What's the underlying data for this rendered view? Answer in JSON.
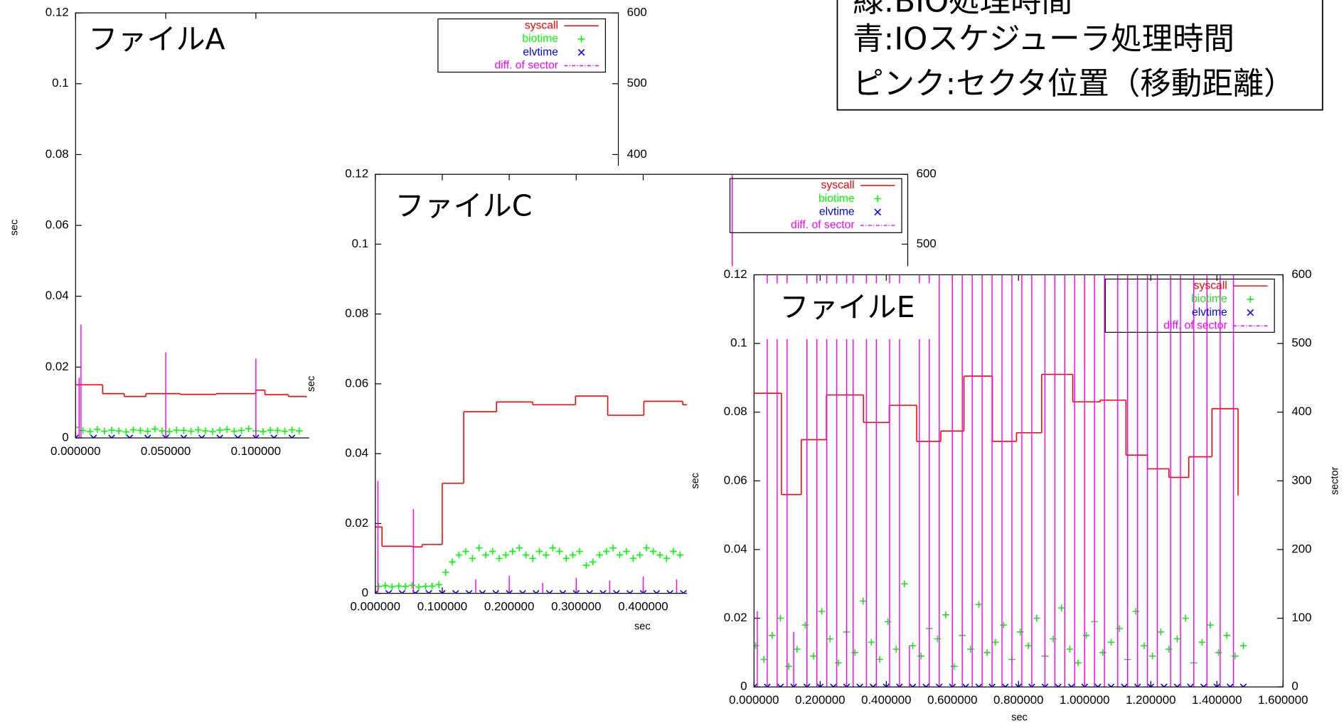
{
  "note": {
    "lines": [
      "緑:BIO処理時間",
      "青:IOスケジューラ処理時間",
      "ピンク:セクタ位置（移動距離）"
    ]
  },
  "chart_data": [
    {
      "type": "line",
      "label": "ファイルA",
      "ylabel": "sec",
      "xlim": [
        0,
        0.301
      ],
      "ylim": [
        0,
        0.12
      ],
      "y2lim": [
        0,
        600
      ],
      "xticks": [
        {
          "value": 0,
          "label": "0.000000"
        },
        {
          "value": 0.05,
          "label": "0.050000"
        },
        {
          "value": 0.1,
          "label": "0.100000"
        }
      ],
      "yticks": [
        0,
        0.02,
        0.04,
        0.06,
        0.08,
        0.1,
        0.12
      ],
      "y2ticks": [
        400,
        500,
        600
      ],
      "series": [
        {
          "name": "syscall",
          "color": "#ff0000",
          "style": "steps",
          "x": [
            0,
            0.015,
            0.027,
            0.039,
            0.058,
            0.078,
            0.1,
            0.105,
            0.118,
            0.128
          ],
          "values": [
            0.015,
            0.0125,
            0.0117,
            0.0125,
            0.0123,
            0.0125,
            0.0135,
            0.0122,
            0.0117,
            0.0117
          ]
        },
        {
          "name": "biotime",
          "color": "#00ff00",
          "style": "points",
          "marker": "+",
          "x": [
            0,
            0.004,
            0.008,
            0.012,
            0.016,
            0.02,
            0.024,
            0.028,
            0.032,
            0.036,
            0.04,
            0.044,
            0.048,
            0.052,
            0.056,
            0.06,
            0.064,
            0.068,
            0.072,
            0.076,
            0.08,
            0.084,
            0.088,
            0.092,
            0.096,
            0.1,
            0.104,
            0.108,
            0.112,
            0.116,
            0.12,
            0.124
          ],
          "values": [
            0.003,
            0.0021,
            0.0018,
            0.0024,
            0.0019,
            0.0022,
            0.002,
            0.0017,
            0.0023,
            0.0021,
            0.0019,
            0.0025,
            0.002,
            0.0018,
            0.0022,
            0.0021,
            0.0019,
            0.0023,
            0.002,
            0.0018,
            0.0022,
            0.0024,
            0.0019,
            0.0021,
            0.0026,
            0.002,
            0.0018,
            0.0022,
            0.0021,
            0.0019,
            0.0023,
            0.002
          ]
        },
        {
          "name": "elvtime",
          "color": "#0000ff",
          "style": "points",
          "marker": "x",
          "x": [
            0,
            0.01,
            0.02,
            0.03,
            0.04,
            0.05,
            0.06,
            0.07,
            0.08,
            0.09,
            0.1,
            0.11,
            0.12
          ],
          "values": [
            0,
            0,
            0,
            0,
            0,
            0,
            0,
            0,
            0,
            0,
            0,
            0,
            0
          ]
        },
        {
          "name": "diff. of sector",
          "color": "#ff00ff",
          "style": "impulses",
          "axis": "y2",
          "x": [
            0.002,
            0.003,
            0.05,
            0.1
          ],
          "values": [
            85,
            160,
            121,
            112
          ]
        }
      ]
    },
    {
      "type": "line",
      "label": "ファイルC",
      "ylabel": "sec",
      "xlabel": "sec",
      "xlim": [
        0,
        0.795
      ],
      "ylim": [
        0,
        0.12
      ],
      "y2lim": [
        0,
        600
      ],
      "xticks": [
        {
          "value": 0,
          "label": "0.000000"
        },
        {
          "value": 0.1,
          "label": "0.100000"
        },
        {
          "value": 0.2,
          "label": "0.200000"
        },
        {
          "value": 0.3,
          "label": "0.300000"
        },
        {
          "value": 0.4,
          "label": "0.400000"
        }
      ],
      "yticks": [
        0,
        0.02,
        0.04,
        0.06,
        0.08,
        0.1,
        0.12
      ],
      "y2ticks": [
        500,
        600
      ],
      "series": [
        {
          "name": "syscall",
          "color": "#ff0000",
          "style": "steps",
          "x": [
            0,
            0.01,
            0.055,
            0.07,
            0.1,
            0.132,
            0.181,
            0.235,
            0.299,
            0.347,
            0.401,
            0.459,
            0.47
          ],
          "values": [
            0.019,
            0.0135,
            0.0133,
            0.014,
            0.0315,
            0.052,
            0.0548,
            0.054,
            0.0565,
            0.051,
            0.055,
            0.054,
            0.054
          ]
        },
        {
          "name": "biotime",
          "color": "#00ff00",
          "style": "points",
          "marker": "+",
          "x": [
            0.005,
            0.015,
            0.025,
            0.035,
            0.045,
            0.055,
            0.065,
            0.075,
            0.085,
            0.095,
            0.105,
            0.115,
            0.125,
            0.135,
            0.145,
            0.155,
            0.165,
            0.175,
            0.185,
            0.195,
            0.205,
            0.215,
            0.225,
            0.235,
            0.245,
            0.255,
            0.265,
            0.275,
            0.285,
            0.295,
            0.305,
            0.315,
            0.325,
            0.335,
            0.345,
            0.355,
            0.365,
            0.375,
            0.385,
            0.395,
            0.405,
            0.415,
            0.425,
            0.435,
            0.445,
            0.455
          ],
          "values": [
            0.002,
            0.0022,
            0.0019,
            0.0021,
            0.002,
            0.0023,
            0.0018,
            0.002,
            0.0021,
            0.0025,
            0.006,
            0.009,
            0.011,
            0.012,
            0.01,
            0.013,
            0.011,
            0.012,
            0.01,
            0.011,
            0.012,
            0.013,
            0.011,
            0.01,
            0.012,
            0.011,
            0.013,
            0.012,
            0.01,
            0.011,
            0.012,
            0.008,
            0.009,
            0.011,
            0.012,
            0.013,
            0.011,
            0.012,
            0.01,
            0.011,
            0.013,
            0.012,
            0.011,
            0.01,
            0.012,
            0.011
          ]
        },
        {
          "name": "elvtime",
          "color": "#0000ff",
          "style": "points",
          "marker": "x",
          "x": [
            0,
            0.02,
            0.04,
            0.06,
            0.08,
            0.1,
            0.12,
            0.14,
            0.16,
            0.18,
            0.2,
            0.22,
            0.24,
            0.26,
            0.28,
            0.3,
            0.32,
            0.34,
            0.36,
            0.38,
            0.4,
            0.42,
            0.44,
            0.46
          ],
          "values": [
            0,
            0,
            0,
            0,
            0,
            0,
            0,
            0,
            0,
            0,
            0,
            0,
            0,
            0,
            0,
            0,
            0,
            0,
            0,
            0,
            0,
            0,
            0,
            0
          ]
        },
        {
          "name": "diff. of sector",
          "color": "#ff00ff",
          "style": "impulses",
          "axis": "y2",
          "x": [
            0.004,
            0.057,
            0.15,
            0.2,
            0.25,
            0.3,
            0.35,
            0.4,
            0.45,
            0.533
          ],
          "values": [
            161,
            121,
            20,
            25,
            15,
            22,
            18,
            24,
            20,
            600
          ]
        }
      ]
    },
    {
      "type": "line",
      "label": "ファイルE",
      "ylabel": "sec",
      "xlabel": "sec",
      "y2label": "sector",
      "xlim": [
        0,
        1.6
      ],
      "ylim": [
        0,
        0.12
      ],
      "y2lim": [
        0,
        600
      ],
      "xticks": [
        {
          "value": 0,
          "label": "0.000000"
        },
        {
          "value": 0.2,
          "label": "0.200000"
        },
        {
          "value": 0.4,
          "label": "0.400000"
        },
        {
          "value": 0.6,
          "label": "0.600000"
        },
        {
          "value": 0.8,
          "label": "0.800000"
        },
        {
          "value": 1,
          "label": "1.000000"
        },
        {
          "value": 1.2,
          "label": "1.200000"
        },
        {
          "value": 1.4,
          "label": "1.400000"
        },
        {
          "value": 1.6,
          "label": "1.600000"
        }
      ],
      "yticks": [
        0,
        0.02,
        0.04,
        0.06,
        0.08,
        0.1,
        0.12
      ],
      "y2ticks": [
        0,
        100,
        200,
        300,
        400,
        500,
        600
      ],
      "series": [
        {
          "name": "syscall",
          "color": "#ff0000",
          "style": "steps",
          "x": [
            0,
            0.083,
            0.143,
            0.219,
            0.331,
            0.409,
            0.492,
            0.565,
            0.635,
            0.721,
            0.794,
            0.87,
            0.964,
            1.047,
            1.125,
            1.19,
            1.255,
            1.315,
            1.385,
            1.464
          ],
          "values": [
            0.0855,
            0.056,
            0.072,
            0.085,
            0.077,
            0.082,
            0.0715,
            0.0745,
            0.0905,
            0.0715,
            0.074,
            0.091,
            0.083,
            0.0835,
            0.0675,
            0.0635,
            0.061,
            0.067,
            0.081,
            0.056
          ]
        },
        {
          "name": "biotime",
          "color": "#22dd22",
          "style": "points",
          "marker": "+",
          "x": [
            0.005,
            0.03,
            0.055,
            0.08,
            0.105,
            0.13,
            0.155,
            0.18,
            0.205,
            0.23,
            0.255,
            0.28,
            0.305,
            0.33,
            0.355,
            0.38,
            0.405,
            0.43,
            0.455,
            0.48,
            0.505,
            0.53,
            0.555,
            0.58,
            0.605,
            0.63,
            0.655,
            0.68,
            0.705,
            0.73,
            0.755,
            0.78,
            0.805,
            0.83,
            0.855,
            0.88,
            0.905,
            0.93,
            0.955,
            0.98,
            1.005,
            1.03,
            1.055,
            1.08,
            1.105,
            1.13,
            1.155,
            1.18,
            1.205,
            1.23,
            1.255,
            1.28,
            1.305,
            1.33,
            1.355,
            1.38,
            1.405,
            1.43,
            1.455,
            1.48
          ],
          "values": [
            0.012,
            0.008,
            0.015,
            0.02,
            0.006,
            0.011,
            0.018,
            0.009,
            0.022,
            0.014,
            0.007,
            0.016,
            0.01,
            0.025,
            0.013,
            0.008,
            0.019,
            0.011,
            0.03,
            0.012,
            0.009,
            0.017,
            0.014,
            0.021,
            0.006,
            0.015,
            0.011,
            0.024,
            0.01,
            0.013,
            0.018,
            0.008,
            0.016,
            0.012,
            0.02,
            0.009,
            0.014,
            0.023,
            0.011,
            0.007,
            0.015,
            0.019,
            0.01,
            0.013,
            0.017,
            0.008,
            0.022,
            0.012,
            0.009,
            0.016,
            0.011,
            0.014,
            0.02,
            0.007,
            0.013,
            0.018,
            0.01,
            0.015,
            0.009,
            0.012
          ]
        },
        {
          "name": "elvtime",
          "color": "#0000ff",
          "style": "points",
          "marker": "x",
          "x": [
            0,
            0.04,
            0.08,
            0.12,
            0.16,
            0.2,
            0.24,
            0.28,
            0.32,
            0.36,
            0.4,
            0.44,
            0.48,
            0.52,
            0.56,
            0.6,
            0.64,
            0.68,
            0.72,
            0.76,
            0.8,
            0.84,
            0.88,
            0.92,
            0.96,
            1,
            1.04,
            1.08,
            1.12,
            1.16,
            1.2,
            1.24,
            1.28,
            1.32,
            1.36,
            1.4,
            1.44,
            1.48
          ],
          "values": [
            0,
            0,
            0,
            0,
            0,
            0,
            0,
            0,
            0,
            0,
            0,
            0,
            0,
            0,
            0,
            0,
            0,
            0,
            0,
            0,
            0,
            0,
            0,
            0,
            0,
            0,
            0,
            0,
            0,
            0,
            0,
            0,
            0,
            0,
            0,
            0,
            0,
            0
          ]
        },
        {
          "name": "diff. of sector",
          "color": "#ff00ff",
          "style": "impulses",
          "axis": "y2",
          "x": [
            0.01,
            0.04,
            0.07,
            0.1,
            0.12,
            0.16,
            0.19,
            0.22,
            0.25,
            0.28,
            0.3,
            0.34,
            0.37,
            0.41,
            0.44,
            0.47,
            0.5,
            0.53,
            0.56,
            0.6,
            0.63,
            0.66,
            0.69,
            0.72,
            0.75,
            0.78,
            0.81,
            0.84,
            0.88,
            0.91,
            0.94,
            0.97,
            1.0,
            1.03,
            1.06,
            1.1,
            1.13,
            1.16,
            1.19,
            1.22,
            1.26,
            1.29,
            1.33,
            1.37,
            1.41,
            1.45
          ],
          "values": [
            110,
            600,
            600,
            600,
            80,
            600,
            600,
            600,
            600,
            600,
            600,
            600,
            600,
            600,
            600,
            60,
            600,
            600,
            600,
            600,
            600,
            600,
            600,
            600,
            600,
            600,
            600,
            600,
            600,
            600,
            600,
            600,
            600,
            600,
            600,
            600,
            600,
            600,
            600,
            600,
            600,
            600,
            600,
            600,
            600,
            600
          ]
        }
      ]
    }
  ]
}
